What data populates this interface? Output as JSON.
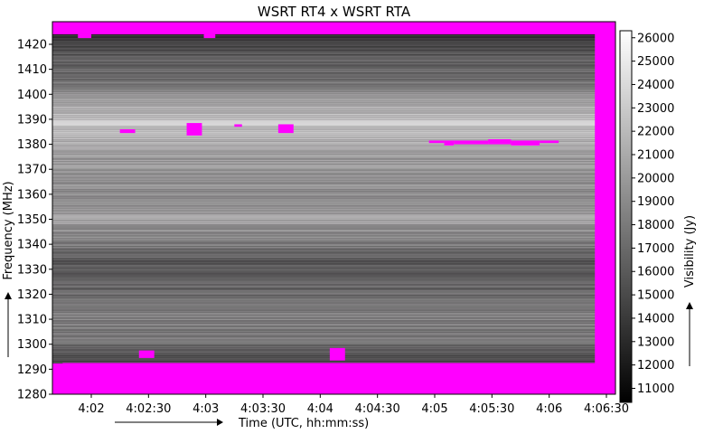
{
  "chart_data": {
    "type": "heatmap",
    "title": "WSRT RT4 x WSRT RTA",
    "xlabel": "Time (UTC, hh:mm:ss)",
    "ylabel": "Frequency (MHz)",
    "colorbar_label": "Visibility (Jy)",
    "x_ticks": [
      "4:02",
      "4:02:30",
      "4:03",
      "4:03:30",
      "4:04",
      "4:04:30",
      "4:05",
      "4:05:30",
      "4:06",
      "4:06:30"
    ],
    "y_ticks": [
      1280,
      1290,
      1300,
      1310,
      1320,
      1330,
      1340,
      1350,
      1360,
      1370,
      1380,
      1390,
      1400,
      1410,
      1420
    ],
    "ylim": [
      1277.5,
      1429.5
    ],
    "colorbar_ticks": [
      11000,
      12000,
      13000,
      14000,
      15000,
      16000,
      17000,
      18000,
      19000,
      20000,
      21000,
      22000,
      23000,
      24000,
      25000,
      26000
    ],
    "colorbar_range": [
      10400,
      26300
    ],
    "colormap": "greyscale",
    "flag_color": "#ff00ff",
    "spectral_profile": [
      {
        "freq": 1292,
        "value": 14500
      },
      {
        "freq": 1296,
        "value": 15500
      },
      {
        "freq": 1300,
        "value": 17500
      },
      {
        "freq": 1310,
        "value": 18500
      },
      {
        "freq": 1320,
        "value": 17000
      },
      {
        "freq": 1330,
        "value": 15500
      },
      {
        "freq": 1338,
        "value": 17500
      },
      {
        "freq": 1350,
        "value": 20500
      },
      {
        "freq": 1360,
        "value": 19000
      },
      {
        "freq": 1370,
        "value": 19500
      },
      {
        "freq": 1380,
        "value": 21000
      },
      {
        "freq": 1388,
        "value": 23000
      },
      {
        "freq": 1395,
        "value": 21000
      },
      {
        "freq": 1405,
        "value": 17500
      },
      {
        "freq": 1415,
        "value": 16000
      },
      {
        "freq": 1424,
        "value": 13500
      }
    ],
    "flagged_regions": [
      {
        "t0": "4:01:45",
        "t1": "4:06:44",
        "f0": 1277.5,
        "f1": 1292.5
      },
      {
        "t0": "4:06:24",
        "t1": "4:06:44",
        "f0": 1292.5,
        "f1": 1426
      },
      {
        "t0": "4:01:45",
        "t1": "4:06:44",
        "f0": 1424,
        "f1": 1429.5
      },
      {
        "t0": "4:01:53",
        "t1": "4:02:00",
        "f0": 1422.5,
        "f1": 1424
      },
      {
        "t0": "4:02:59",
        "t1": "4:03:05",
        "f0": 1422.5,
        "f1": 1424
      },
      {
        "t0": "4:02:15",
        "t1": "4:02:23",
        "f0": 1384.5,
        "f1": 1386
      },
      {
        "t0": "4:02:25",
        "t1": "4:02:33",
        "f0": 1294.5,
        "f1": 1297.5
      },
      {
        "t0": "4:02:50",
        "t1": "4:02:58",
        "f0": 1383.5,
        "f1": 1388.5
      },
      {
        "t0": "4:03:15",
        "t1": "4:03:19",
        "f0": 1387,
        "f1": 1388
      },
      {
        "t0": "4:03:38",
        "t1": "4:03:46",
        "f0": 1384.5,
        "f1": 1388
      },
      {
        "t0": "4:04:05",
        "t1": "4:04:13",
        "f0": 1293.5,
        "f1": 1298.5
      },
      {
        "t0": "4:04:57",
        "t1": "4:05:05",
        "f0": 1380.5,
        "f1": 1381.5
      },
      {
        "t0": "4:05:05",
        "t1": "4:05:10",
        "f0": 1379.5,
        "f1": 1381.5
      },
      {
        "t0": "4:05:10",
        "t1": "4:05:28",
        "f0": 1380,
        "f1": 1381.5
      },
      {
        "t0": "4:05:28",
        "t1": "4:05:40",
        "f0": 1380,
        "f1": 1382
      },
      {
        "t0": "4:05:40",
        "t1": "4:05:55",
        "f0": 1379.5,
        "f1": 1381.5
      },
      {
        "t0": "4:05:55",
        "t1": "4:06:05",
        "f0": 1380.5,
        "f1": 1381.5
      }
    ]
  }
}
